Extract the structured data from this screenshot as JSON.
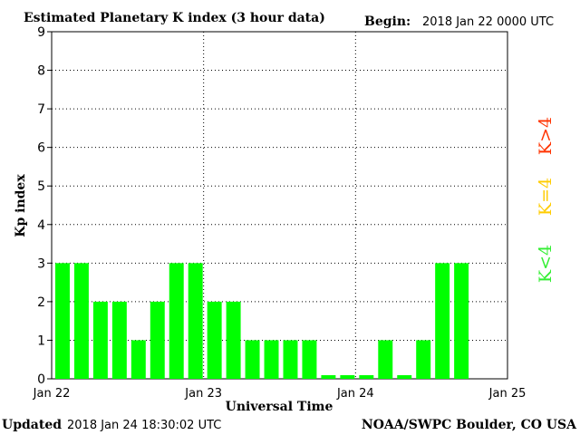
{
  "header": {
    "title": "Estimated Planetary K index (3 hour data)",
    "begin_label": "Begin:",
    "begin_value": "2018 Jan 22 0000 UTC"
  },
  "footer": {
    "updated_label": "Updated",
    "updated_value": "2018 Jan 24 18:30:02 UTC",
    "credit": "NOAA/SWPC Boulder, CO USA"
  },
  "legend": [
    {
      "text": "K>4",
      "color": "#ff3300"
    },
    {
      "text": "K=4",
      "color": "#ffcc00"
    },
    {
      "text": "K<4",
      "color": "#33ee33"
    }
  ],
  "colors": {
    "bar_low": "#00ff00",
    "axis": "#000000",
    "grid": "#000000",
    "background": "#ffffff"
  },
  "chart_data": {
    "type": "bar",
    "title": "Estimated Planetary K index (3 hour data)",
    "xlabel": "Universal Time",
    "ylabel": "Kp index",
    "ylim": [
      0,
      9
    ],
    "yticks": [
      "0",
      "1",
      "2",
      "3",
      "4",
      "5",
      "6",
      "7",
      "8",
      "9"
    ],
    "x_tick_labels": [
      "Jan 22",
      "Jan 23",
      "Jan 24",
      "Jan 25"
    ],
    "interval_hours": 3,
    "values": [
      3,
      3,
      2,
      2,
      1,
      2,
      3,
      3,
      2,
      2,
      1,
      1,
      1,
      1,
      0,
      0,
      0,
      1,
      0,
      1,
      3,
      3
    ],
    "grid": true,
    "grid_style": "dotted"
  }
}
